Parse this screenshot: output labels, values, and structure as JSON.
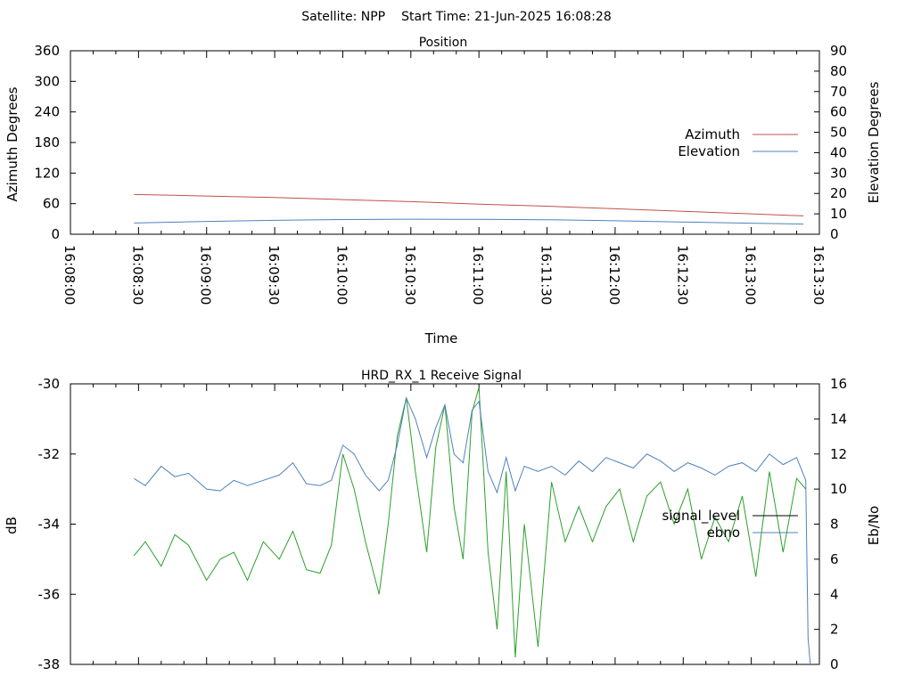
{
  "figure": {
    "header_satellite": "Satellite: NPP",
    "header_start": "Start Time: 21-Jun-2025 16:08:28"
  },
  "chart_data": [
    {
      "id": "position",
      "type": "line",
      "title": "Position",
      "xlabel": "Time",
      "ylabel": "Azimuth Degrees",
      "y2label": "Elevation Degrees",
      "x_ticks": [
        "16:08:00",
        "16:08:30",
        "16:09:00",
        "16:09:30",
        "16:10:00",
        "16:10:30",
        "16:11:00",
        "16:11:30",
        "16:12:00",
        "16:12:30",
        "16:13:00",
        "16:13:30"
      ],
      "ylim": [
        0,
        360
      ],
      "y_ticks": [
        "0",
        "60",
        "120",
        "180",
        "240",
        "300",
        "360"
      ],
      "y2lim": [
        0,
        90
      ],
      "y2_ticks": [
        "0",
        "10",
        "20",
        "30",
        "40",
        "50",
        "60",
        "70",
        "80",
        "90"
      ],
      "legend_position": "right",
      "colors": {
        "azimuth": "#c0504d",
        "elevation": "#4f81bd"
      },
      "series": [
        {
          "name": "Azimuth",
          "axis": "left",
          "x": [
            "16:08:28",
            "16:08:45",
            "16:09:00",
            "16:09:30",
            "16:10:00",
            "16:10:30",
            "16:11:00",
            "16:11:30",
            "16:12:00",
            "16:12:30",
            "16:13:00",
            "16:13:23"
          ],
          "values": [
            78,
            76.5,
            75,
            72,
            68,
            64,
            59,
            55,
            50,
            45,
            40,
            36
          ]
        },
        {
          "name": "Elevation",
          "axis": "right",
          "x": [
            "16:08:28",
            "16:09:00",
            "16:09:30",
            "16:10:00",
            "16:10:30",
            "16:11:00",
            "16:11:30",
            "16:12:00",
            "16:12:30",
            "16:13:00",
            "16:13:23"
          ],
          "values": [
            5.5,
            6.3,
            6.8,
            7.2,
            7.4,
            7.3,
            7.1,
            6.6,
            6.0,
            5.4,
            5.0
          ]
        }
      ]
    },
    {
      "id": "signal",
      "type": "line",
      "title": "HRD_RX_1 Receive Signal",
      "ylabel": "dB",
      "y2label": "Eb/No",
      "ylim": [
        -38,
        -30
      ],
      "y_ticks": [
        "-30",
        "-32",
        "-34",
        "-36",
        "-38"
      ],
      "y2lim": [
        0,
        16
      ],
      "y2_ticks": [
        "0",
        "2",
        "4",
        "6",
        "8",
        "10",
        "12",
        "14",
        "16"
      ],
      "legend_position": "right",
      "colors": {
        "signal_level": "#000000",
        "ebno": "#4f81bd",
        "signal_trace": "#2ca02c"
      },
      "series": [
        {
          "name": "signal_level",
          "axis": "left",
          "x": [
            "16:08:28",
            "16:08:33",
            "16:08:40",
            "16:08:46",
            "16:08:52",
            "16:09:00",
            "16:09:06",
            "16:09:12",
            "16:09:18",
            "16:09:25",
            "16:09:32",
            "16:09:38",
            "16:09:44",
            "16:09:50",
            "16:09:55",
            "16:10:00",
            "16:10:05",
            "16:10:10",
            "16:10:16",
            "16:10:20",
            "16:10:24",
            "16:10:28",
            "16:10:32",
            "16:10:37",
            "16:10:41",
            "16:10:45",
            "16:10:49",
            "16:10:53",
            "16:10:57",
            "16:11:00",
            "16:11:04",
            "16:11:08",
            "16:11:12",
            "16:11:16",
            "16:11:20",
            "16:11:26",
            "16:11:32",
            "16:11:38",
            "16:11:44",
            "16:11:50",
            "16:11:56",
            "16:12:02",
            "16:12:08",
            "16:12:14",
            "16:12:20",
            "16:12:26",
            "16:12:32",
            "16:12:38",
            "16:12:44",
            "16:12:50",
            "16:12:56",
            "16:13:02",
            "16:13:08",
            "16:13:14",
            "16:13:20",
            "16:13:24"
          ],
          "values": [
            -34.9,
            -34.5,
            -35.2,
            -34.3,
            -34.6,
            -35.6,
            -35.0,
            -34.8,
            -35.6,
            -34.5,
            -35.0,
            -34.2,
            -35.3,
            -35.4,
            -34.6,
            -32.0,
            -33.0,
            -34.5,
            -36.0,
            -34.0,
            -31.5,
            -30.4,
            -32.5,
            -34.8,
            -31.8,
            -30.6,
            -33.5,
            -35.0,
            -30.8,
            -30.1,
            -34.8,
            -37.0,
            -32.5,
            -37.8,
            -34.0,
            -37.5,
            -32.8,
            -34.5,
            -33.5,
            -34.5,
            -33.5,
            -33.0,
            -34.5,
            -33.2,
            -32.8,
            -34.0,
            -33.0,
            -35.0,
            -33.8,
            -34.5,
            -33.2,
            -35.5,
            -32.5,
            -34.8,
            -32.7,
            -33.0
          ]
        },
        {
          "name": "ebno",
          "axis": "right",
          "x": [
            "16:08:28",
            "16:08:33",
            "16:08:40",
            "16:08:46",
            "16:08:52",
            "16:09:00",
            "16:09:06",
            "16:09:12",
            "16:09:18",
            "16:09:25",
            "16:09:32",
            "16:09:38",
            "16:09:44",
            "16:09:50",
            "16:09:55",
            "16:10:00",
            "16:10:05",
            "16:10:10",
            "16:10:16",
            "16:10:20",
            "16:10:24",
            "16:10:28",
            "16:10:32",
            "16:10:37",
            "16:10:41",
            "16:10:45",
            "16:10:49",
            "16:10:53",
            "16:10:57",
            "16:11:00",
            "16:11:04",
            "16:11:08",
            "16:11:12",
            "16:11:16",
            "16:11:20",
            "16:11:26",
            "16:11:32",
            "16:11:38",
            "16:11:44",
            "16:11:50",
            "16:11:56",
            "16:12:02",
            "16:12:08",
            "16:12:14",
            "16:12:20",
            "16:12:26",
            "16:12:32",
            "16:12:38",
            "16:12:44",
            "16:12:50",
            "16:12:56",
            "16:13:02",
            "16:13:08",
            "16:13:14",
            "16:13:20",
            "16:13:24",
            "16:13:25",
            "16:13:26"
          ],
          "values": [
            10.6,
            10.2,
            11.3,
            10.7,
            10.9,
            10.0,
            9.9,
            10.5,
            10.2,
            10.5,
            10.8,
            11.5,
            10.3,
            10.2,
            10.5,
            12.5,
            12.0,
            10.8,
            9.9,
            10.5,
            12.5,
            15.2,
            14.0,
            11.8,
            13.5,
            14.8,
            12.0,
            11.5,
            14.5,
            15.0,
            11.0,
            9.8,
            11.8,
            9.9,
            11.3,
            11.0,
            11.3,
            10.8,
            11.6,
            11.0,
            11.8,
            11.5,
            11.2,
            12.0,
            11.6,
            11.0,
            11.5,
            11.2,
            10.8,
            11.3,
            11.5,
            11.0,
            12.0,
            11.4,
            11.8,
            10.5,
            1.5,
            0.0
          ]
        }
      ]
    }
  ]
}
